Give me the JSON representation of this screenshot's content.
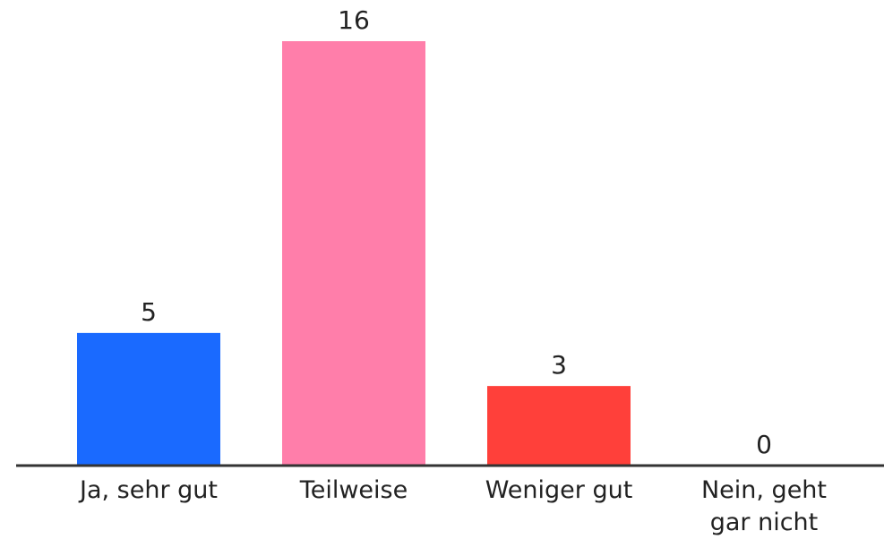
{
  "chart_data": {
    "type": "bar",
    "categories": [
      "Ja, sehr gut",
      "Teilweise",
      "Weniger gut",
      "Nein, geht gar nicht"
    ],
    "values": [
      5,
      16,
      3,
      0
    ],
    "colors": [
      "#1a6aff",
      "#ff7eaa",
      "#ff403a",
      "#ffbe00"
    ]
  }
}
